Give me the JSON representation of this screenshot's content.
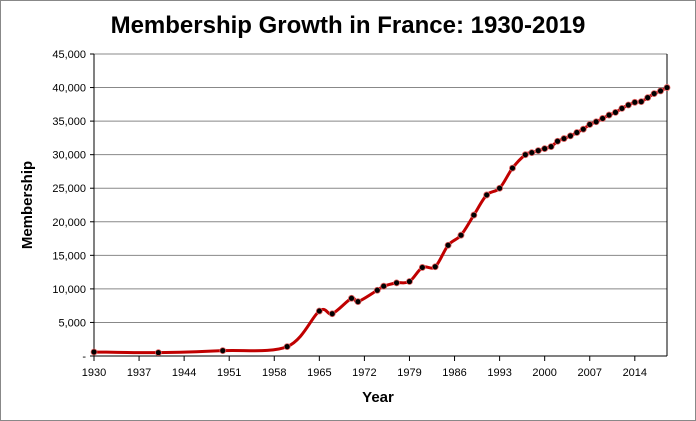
{
  "chart_data": {
    "type": "line",
    "title": "Membership Growth in France: 1930-2019",
    "xlabel": "Year",
    "ylabel": "Membership",
    "xlim": [
      1930,
      2019
    ],
    "ylim": [
      0,
      45000
    ],
    "xticks": [
      1930,
      1937,
      1944,
      1951,
      1958,
      1965,
      1972,
      1979,
      1986,
      1993,
      2000,
      2007,
      2014
    ],
    "yticks": [
      "-",
      "5,000",
      "10,000",
      "15,000",
      "20,000",
      "25,000",
      "30,000",
      "35,000",
      "40,000",
      "45,000"
    ],
    "grid": true,
    "line_color": "#c00000",
    "marker_color": "#000000",
    "x": [
      1930,
      1940,
      1950,
      1960,
      1965,
      1967,
      1970,
      1971,
      1974,
      1975,
      1977,
      1979,
      1981,
      1983,
      1985,
      1987,
      1989,
      1991,
      1993,
      1995,
      1997,
      1998,
      1999,
      2000,
      2001,
      2002,
      2003,
      2004,
      2005,
      2006,
      2007,
      2008,
      2009,
      2010,
      2011,
      2012,
      2013,
      2014,
      2015,
      2016,
      2017,
      2018,
      2019
    ],
    "y": [
      600,
      500,
      800,
      1400,
      6700,
      6300,
      8600,
      8100,
      9800,
      10400,
      10900,
      11100,
      13200,
      13300,
      16500,
      18000,
      21000,
      24000,
      25000,
      28000,
      30000,
      30300,
      30600,
      30900,
      31200,
      32000,
      32400,
      32800,
      33300,
      33800,
      34500,
      34900,
      35400,
      35900,
      36300,
      36900,
      37400,
      37800,
      37900,
      38500,
      39100,
      39500,
      40000
    ]
  }
}
